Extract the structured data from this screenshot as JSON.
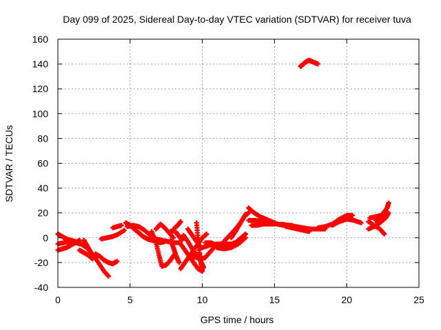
{
  "chart_data": {
    "type": "scatter",
    "title": "Day 099 of 2025, Sidereal Day-to-day VTEC variation (SDTVAR) for receiver tuva",
    "xlabel": "GPS time / hours",
    "ylabel": "SDTVAR / TECUs",
    "xlim": [
      0,
      25
    ],
    "ylim": [
      -40,
      160
    ],
    "xticks": [
      "0",
      "5",
      "10",
      "15",
      "20",
      "25"
    ],
    "yticks": [
      "-40",
      "-20",
      "0",
      "20",
      "40",
      "60",
      "80",
      "100",
      "120",
      "140",
      "160"
    ],
    "grid": true,
    "marker": "+",
    "series_color": "#ff0000",
    "series": [
      {
        "name": "s1",
        "x": [
          0.0,
          0.3,
          0.6,
          0.9,
          1.2,
          1.5
        ],
        "y": [
          -10,
          -9,
          -8,
          -6,
          -4,
          -2
        ]
      },
      {
        "name": "s2",
        "x": [
          0.0,
          0.3,
          0.6,
          0.9,
          1.2,
          1.5
        ],
        "y": [
          3,
          1,
          -1,
          -2,
          -3,
          -5
        ]
      },
      {
        "name": "s3",
        "x": [
          0.0,
          0.4,
          0.8,
          1.2,
          1.6,
          2.0,
          2.4,
          2.8,
          3.2,
          3.5
        ],
        "y": [
          -5,
          -4,
          -3,
          -4,
          -5,
          -8,
          -13,
          -20,
          -27,
          -31
        ]
      },
      {
        "name": "s4",
        "x": [
          1.5,
          1.8,
          2.1,
          2.4
        ],
        "y": [
          -10,
          -12,
          -14,
          -17
        ]
      },
      {
        "name": "s5",
        "x": [
          1.8,
          2.0,
          2.2
        ],
        "y": [
          -2,
          -6,
          -10
        ]
      },
      {
        "name": "s6",
        "x": [
          2.6,
          2.9,
          3.2,
          3.5,
          3.8,
          4.1
        ],
        "y": [
          -13,
          -15,
          -18,
          -20,
          -21,
          -19
        ]
      },
      {
        "name": "s7",
        "x": [
          3.0,
          3.4,
          3.8,
          4.2,
          4.6
        ],
        "y": [
          -1,
          0,
          1,
          3,
          6
        ]
      },
      {
        "name": "s8",
        "x": [
          3.8,
          4.1,
          4.4
        ],
        "y": [
          8,
          9,
          10
        ]
      },
      {
        "name": "s9",
        "x": [
          4.7,
          5.0,
          5.3,
          5.6,
          5.9,
          6.2,
          6.5,
          6.8,
          7.1,
          7.4
        ],
        "y": [
          12,
          10,
          7,
          4,
          1,
          -1,
          -2,
          -3,
          -4,
          -3
        ]
      },
      {
        "name": "s10",
        "x": [
          4.8,
          5.2,
          5.6,
          6.0,
          6.4,
          6.8,
          7.2,
          7.6,
          8.0,
          8.4
        ],
        "y": [
          9,
          10,
          9,
          6,
          2,
          -1,
          -2,
          -3,
          -4,
          -4
        ]
      },
      {
        "name": "s11",
        "x": [
          6.5,
          6.8,
          7.0,
          7.2,
          7.5,
          7.8,
          8.1
        ],
        "y": [
          5,
          -4,
          -14,
          -23,
          -22,
          -18,
          -13
        ]
      },
      {
        "name": "s12",
        "x": [
          6.8,
          7.1,
          7.4,
          7.7,
          8.0
        ],
        "y": [
          7,
          11,
          8,
          4,
          0
        ]
      },
      {
        "name": "s13",
        "x": [
          7.8,
          8.0,
          8.2,
          8.4,
          8.6
        ],
        "y": [
          5,
          6,
          4,
          1,
          -2
        ]
      },
      {
        "name": "s14",
        "x": [
          8.1,
          8.3,
          8.5
        ],
        "y": [
          8,
          10,
          13
        ]
      },
      {
        "name": "s15",
        "x": [
          7.8,
          8.0,
          8.2,
          8.4
        ],
        "y": [
          -2,
          -8,
          -15,
          -20
        ]
      },
      {
        "name": "s16",
        "x": [
          8.5,
          8.8,
          9.1,
          9.4,
          9.7,
          10.0
        ],
        "y": [
          -5,
          -10,
          -15,
          -20,
          -25,
          -27
        ]
      },
      {
        "name": "s17",
        "x": [
          8.5,
          8.8,
          9.1,
          9.4,
          9.7,
          10.0,
          10.3
        ],
        "y": [
          -25,
          -20,
          -15,
          -10,
          -5,
          0,
          3
        ]
      },
      {
        "name": "s18",
        "x": [
          8.7,
          9.0,
          9.3,
          9.6,
          9.9,
          10.1
        ],
        "y": [
          2,
          -3,
          -9,
          -14,
          -19,
          -24
        ]
      },
      {
        "name": "s19",
        "x": [
          9.0,
          9.3,
          9.6,
          9.9
        ],
        "y": [
          7,
          2,
          -3,
          -8
        ]
      },
      {
        "name": "s20",
        "x": [
          9.3,
          9.6,
          9.9,
          10.2,
          10.5,
          10.8
        ],
        "y": [
          -15,
          -16,
          -17,
          -16,
          -12,
          -8
        ]
      },
      {
        "name": "s21",
        "x": [
          9.6,
          9.7,
          9.8,
          9.9,
          10.0
        ],
        "y": [
          12,
          0,
          -12,
          -20,
          -26
        ]
      },
      {
        "name": "s22",
        "x": [
          10.0,
          10.5,
          11.0,
          11.5,
          12.0,
          12.5
        ],
        "y": [
          -8,
          -6,
          -5,
          -5,
          -5,
          -3
        ]
      },
      {
        "name": "s23",
        "x": [
          10.2,
          10.6,
          11.0,
          11.4,
          11.8,
          12.2
        ],
        "y": [
          -4,
          -4,
          -6,
          -8,
          -7,
          -5
        ]
      },
      {
        "name": "s24",
        "x": [
          11.0,
          11.5,
          12.0,
          12.5,
          13.0
        ],
        "y": [
          -8,
          -9,
          -8,
          -5,
          0
        ]
      },
      {
        "name": "s25",
        "x": [
          11.5,
          11.9,
          12.3,
          12.7,
          13.0
        ],
        "y": [
          -3,
          2,
          7,
          13,
          19
        ]
      },
      {
        "name": "s26",
        "x": [
          12.0,
          12.3,
          12.6,
          12.9,
          13.2
        ],
        "y": [
          0,
          5,
          11,
          17,
          20
        ]
      },
      {
        "name": "s27",
        "x": [
          12.4,
          12.7,
          13.0
        ],
        "y": [
          -3,
          0,
          3
        ]
      },
      {
        "name": "s28",
        "x": [
          13.2,
          13.6,
          14.0,
          14.4,
          14.8,
          15.2,
          15.6,
          16.0
        ],
        "y": [
          24,
          20,
          17,
          15,
          13,
          11,
          10,
          9
        ]
      },
      {
        "name": "s29",
        "x": [
          13.2,
          13.7,
          14.2,
          14.7,
          15.2,
          15.7,
          16.2
        ],
        "y": [
          14,
          14,
          13,
          12,
          11,
          10,
          10
        ]
      },
      {
        "name": "s30",
        "x": [
          13.4,
          13.8,
          14.2,
          14.6,
          15.0
        ],
        "y": [
          10,
          10,
          11,
          11,
          11
        ]
      },
      {
        "name": "s31",
        "x": [
          15.5,
          16.0,
          16.5,
          17.0,
          17.5,
          18.0,
          18.5
        ],
        "y": [
          11,
          10,
          9,
          8,
          7,
          7,
          7
        ]
      },
      {
        "name": "s32",
        "x": [
          15.8,
          16.2,
          16.6,
          17.0,
          17.4
        ],
        "y": [
          9,
          8,
          7,
          6,
          5
        ]
      },
      {
        "name": "s33",
        "x": [
          18.0,
          18.5,
          19.0,
          19.5,
          20.0,
          20.4
        ],
        "y": [
          8,
          9,
          11,
          15,
          18,
          18
        ]
      },
      {
        "name": "s34",
        "x": [
          19.0,
          19.5,
          20.0,
          20.5
        ],
        "y": [
          10,
          13,
          15,
          14
        ]
      },
      {
        "name": "s35",
        "x": [
          20.5,
          21.0
        ],
        "y": [
          14,
          12
        ]
      },
      {
        "name": "s36",
        "x": [
          21.5,
          21.9,
          22.3,
          22.7,
          22.9
        ],
        "y": [
          7,
          9,
          12,
          16,
          20
        ]
      },
      {
        "name": "s37",
        "x": [
          21.5,
          21.9,
          22.3,
          22.6
        ],
        "y": [
          13,
          10,
          7,
          3
        ]
      },
      {
        "name": "s38",
        "x": [
          21.6,
          22.0,
          22.4,
          22.8,
          22.9
        ],
        "y": [
          16,
          17,
          18,
          24,
          28
        ]
      },
      {
        "name": "s39",
        "x": [
          22.0,
          22.4,
          22.8
        ],
        "y": [
          14,
          16,
          20
        ]
      },
      {
        "name": "s40",
        "x": [
          16.8,
          17.0,
          17.2,
          17.4,
          17.6,
          17.8,
          18.0
        ],
        "y": [
          138,
          140,
          142,
          143,
          142,
          141,
          140
        ]
      }
    ]
  }
}
